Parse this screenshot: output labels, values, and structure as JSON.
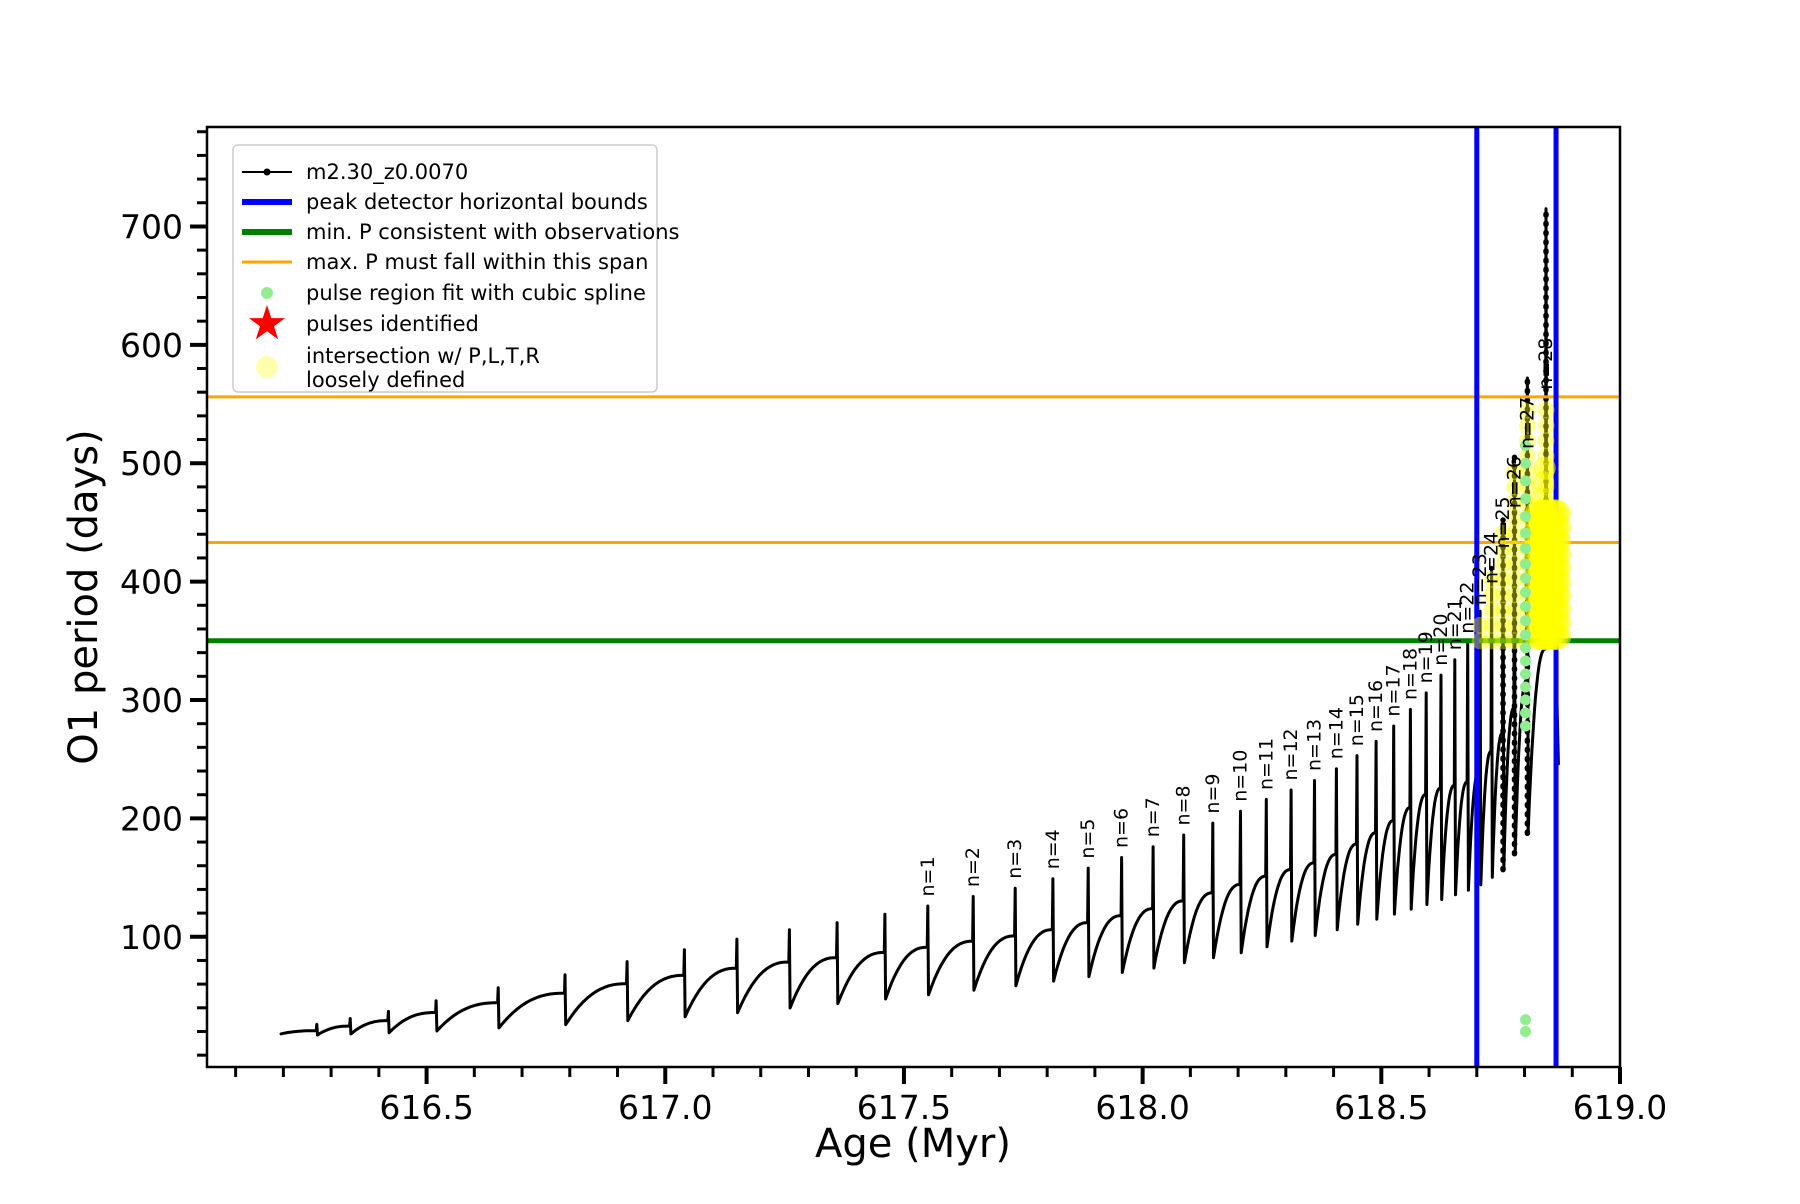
{
  "figure": {
    "background": "#ffffff"
  },
  "axes": {
    "xlabel": "Age (Myr)",
    "ylabel": "O1 period (days)"
  },
  "legend": {
    "entries": [
      {
        "marker": "line-dot",
        "color": "#000000",
        "lw": 2,
        "label": "m2.30_z0.0070"
      },
      {
        "marker": "line",
        "color": "#0000ff",
        "lw": 6,
        "label": "peak detector horizontal bounds"
      },
      {
        "marker": "line",
        "color": "#008000",
        "lw": 6,
        "label": "min. P consistent with observations"
      },
      {
        "marker": "line",
        "color": "#ffa500",
        "lw": 3,
        "label": "max. P must fall within this span"
      },
      {
        "marker": "dot",
        "color": "#90ee90",
        "r": 6,
        "label": "pulse region fit with cubic spline"
      },
      {
        "marker": "star",
        "color": "#ff0000",
        "r": 19,
        "label": "pulses identified"
      },
      {
        "marker": "dot",
        "color": "rgba(255,255,0,0.32)",
        "r": 11,
        "label": "intersection w/ P,L,T,R",
        "label2": "loosely defined"
      }
    ]
  },
  "chart_data": {
    "type": "line",
    "series_label": "m2.30_z0.0070",
    "xlabel": "Age (Myr)",
    "ylabel": "O1 period (days)",
    "xlim": [
      616.04,
      619.0
    ],
    "ylim": [
      -10,
      784
    ],
    "xticks": [
      616.5,
      617.0,
      617.5,
      618.0,
      618.5,
      619.0
    ],
    "xtick_labels": [
      "616.5",
      "617.0",
      "617.5",
      "618.0",
      "618.5",
      "619.0"
    ],
    "x_minor_step": 0.1,
    "yticks": [
      100,
      200,
      300,
      400,
      500,
      600,
      700
    ],
    "y_minor_step": 20,
    "grid": false,
    "line_color": "#000000",
    "start": {
      "age": 616.195,
      "value": 18
    },
    "pulses": [
      {
        "age": 616.27,
        "peak": 26
      },
      {
        "age": 616.34,
        "peak": 31
      },
      {
        "age": 616.42,
        "peak": 37
      },
      {
        "age": 616.52,
        "peak": 46
      },
      {
        "age": 616.65,
        "peak": 57
      },
      {
        "age": 616.79,
        "peak": 68
      },
      {
        "age": 616.92,
        "peak": 79
      },
      {
        "age": 617.04,
        "peak": 89
      },
      {
        "age": 617.15,
        "peak": 98
      },
      {
        "age": 617.26,
        "peak": 106
      },
      {
        "age": 617.36,
        "peak": 112
      },
      {
        "age": 617.46,
        "peak": 119
      },
      {
        "n": 1,
        "age": 617.55,
        "peak": 126,
        "label_v": 134
      },
      {
        "n": 2,
        "age": 617.645,
        "peak": 134,
        "label_v": 142
      },
      {
        "n": 3,
        "age": 617.733,
        "peak": 141,
        "label_v": 149
      },
      {
        "n": 4,
        "age": 617.812,
        "peak": 149,
        "label_v": 157
      },
      {
        "n": 5,
        "age": 617.886,
        "peak": 158,
        "label_v": 166
      },
      {
        "n": 6,
        "age": 617.956,
        "peak": 167,
        "label_v": 175
      },
      {
        "n": 7,
        "age": 618.022,
        "peak": 176,
        "label_v": 184
      },
      {
        "n": 8,
        "age": 618.086,
        "peak": 186,
        "label_v": 194
      },
      {
        "n": 9,
        "age": 618.147,
        "peak": 196,
        "label_v": 204
      },
      {
        "n": 10,
        "age": 618.205,
        "peak": 206,
        "label_v": 214
      },
      {
        "n": 11,
        "age": 618.259,
        "peak": 216,
        "label_v": 224
      },
      {
        "n": 12,
        "age": 618.311,
        "peak": 224,
        "label_v": 232
      },
      {
        "n": 13,
        "age": 618.36,
        "peak": 232,
        "label_v": 240
      },
      {
        "n": 14,
        "age": 618.406,
        "peak": 242,
        "label_v": 250
      },
      {
        "n": 15,
        "age": 618.449,
        "peak": 253,
        "label_v": 261
      },
      {
        "n": 16,
        "age": 618.489,
        "peak": 265,
        "label_v": 273
      },
      {
        "n": 17,
        "age": 618.526,
        "peak": 278,
        "label_v": 286
      },
      {
        "n": 18,
        "age": 618.561,
        "peak": 292,
        "label_v": 300
      },
      {
        "n": 19,
        "age": 618.594,
        "peak": 306,
        "label_v": 314
      },
      {
        "n": 20,
        "age": 618.625,
        "peak": 321,
        "label_v": 329
      },
      {
        "n": 21,
        "age": 618.654,
        "peak": 334,
        "label_v": 342
      },
      {
        "n": 22,
        "age": 618.681,
        "peak": 348,
        "label_v": 356
      },
      {
        "n": 23,
        "age": 618.707,
        "peak": 375,
        "label_v": 380
      },
      {
        "n": 24,
        "age": 618.731,
        "peak": 412,
        "label_v": 398
      },
      {
        "n": 25,
        "age": 618.755,
        "peak": 452,
        "label_v": 428
      },
      {
        "n": 26,
        "age": 618.779,
        "peak": 505,
        "label_v": 462
      },
      {
        "n": 27,
        "age": 618.806,
        "peak": 572,
        "label_v": 512
      },
      {
        "n": 28,
        "age": 618.845,
        "peak": 715,
        "label_v": 562
      }
    ],
    "tail": [
      [
        618.849,
        425
      ],
      [
        618.852,
        354
      ],
      [
        618.855,
        432
      ],
      [
        618.858,
        352
      ],
      [
        618.862,
        418
      ],
      [
        618.865,
        350
      ],
      [
        618.868,
        298
      ],
      [
        618.871,
        246
      ]
    ],
    "min_envelope": [
      [
        616.19,
        16
      ],
      [
        616.5,
        20
      ],
      [
        616.8,
        26
      ],
      [
        617.1,
        34
      ],
      [
        617.4,
        45
      ],
      [
        617.7,
        57
      ],
      [
        618.0,
        72
      ],
      [
        618.2,
        86
      ],
      [
        618.35,
        100
      ],
      [
        618.5,
        116
      ],
      [
        618.6,
        128
      ],
      [
        618.7,
        142
      ],
      [
        618.76,
        158
      ],
      [
        618.81,
        190
      ],
      [
        618.845,
        352
      ]
    ],
    "shoulder_fraction": [
      [
        616.19,
        0.8
      ],
      [
        617.0,
        0.76
      ],
      [
        617.6,
        0.72
      ],
      [
        618.1,
        0.7
      ],
      [
        618.4,
        0.7
      ],
      [
        618.6,
        0.72
      ],
      [
        618.7,
        0.65
      ],
      [
        618.78,
        0.58
      ],
      [
        618.81,
        0.55
      ],
      [
        618.845,
        0.48
      ]
    ],
    "hlines": [
      {
        "value": 556,
        "color": "#ffa500",
        "lw": 3,
        "meaning": "max. P must fall within this span"
      },
      {
        "value": 433,
        "color": "#ffa500",
        "lw": 3,
        "meaning": "max. P must fall within this span"
      },
      {
        "value": 350,
        "color": "#008000",
        "lw": 5,
        "meaning": "min. P consistent with observations"
      }
    ],
    "vlines": [
      {
        "age": 618.7,
        "color": "#0000ff",
        "lw": 5,
        "meaning": "peak detector horizontal bounds"
      },
      {
        "age": 618.866,
        "color": "#0000ff",
        "lw": 5,
        "meaning": "peak detector horizontal bounds"
      }
    ],
    "spline_dots": {
      "age": 618.802,
      "color": "#90ee90",
      "r": 5.5,
      "values": [
        20,
        30,
        278,
        289,
        300,
        311,
        322,
        333,
        344,
        355,
        367,
        379,
        391,
        403,
        415,
        428,
        441,
        455,
        470,
        485,
        500,
        515
      ]
    },
    "yellow_columns": {
      "color": "rgba(255,255,0,0.4)",
      "r": 8.5,
      "v_min": 350,
      "v_cap": 556,
      "v_step": 13,
      "ages_from_n": [
        23,
        24,
        25,
        26,
        27,
        28
      ]
    },
    "yellow_blob": {
      "color": "rgba(255,255,0,0.5)",
      "r": 14,
      "age_min": 618.83,
      "age_max": 618.872,
      "age_step": 0.0055,
      "v_min": 354,
      "v_max": 458,
      "v_step": 11.5,
      "neck": [
        [
          618.836,
          470
        ],
        [
          618.839,
          484
        ],
        [
          618.842,
          496
        ]
      ]
    }
  }
}
